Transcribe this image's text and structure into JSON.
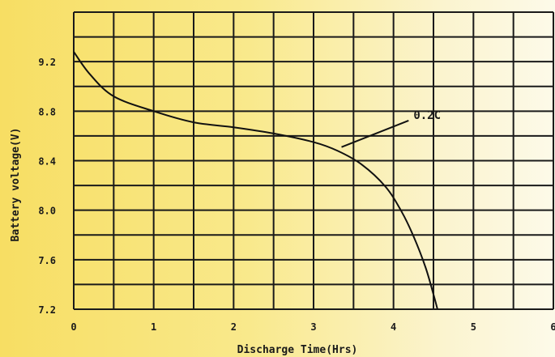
{
  "chart_data": {
    "type": "line",
    "title": "",
    "xlabel": "Discharge Time(Hrs)",
    "ylabel": "Battery voltage(V)",
    "xlim": [
      0,
      6
    ],
    "ylim": [
      7.2,
      9.6
    ],
    "grid": true,
    "x_ticks": [
      {
        "value": 0,
        "label": "0"
      },
      {
        "value": 1,
        "label": "1"
      },
      {
        "value": 2,
        "label": "2"
      },
      {
        "value": 3,
        "label": "3"
      },
      {
        "value": 4,
        "label": "4"
      },
      {
        "value": 5,
        "label": "5"
      },
      {
        "value": 6,
        "label": "6"
      }
    ],
    "y_ticks": [
      {
        "value": 7.2,
        "label": "7.2"
      },
      {
        "value": 7.6,
        "label": "7.6"
      },
      {
        "value": 8.0,
        "label": "8.0"
      },
      {
        "value": 8.4,
        "label": "8.4"
      },
      {
        "value": 8.8,
        "label": "8.8"
      },
      {
        "value": 9.2,
        "label": "9.2"
      }
    ],
    "x_gridlines": [
      0,
      0.5,
      1,
      1.5,
      2,
      2.5,
      3,
      3.5,
      4,
      4.5,
      5,
      5.5,
      6
    ],
    "y_gridlines": [
      7.2,
      7.4,
      7.6,
      7.8,
      8.0,
      8.2,
      8.4,
      8.6,
      8.8,
      9.0,
      9.2,
      9.4,
      9.6
    ],
    "series": [
      {
        "name": "0.2C",
        "x": [
          0,
          0.2,
          0.5,
          1.0,
          1.5,
          2.0,
          2.5,
          3.0,
          3.3,
          3.6,
          3.9,
          4.1,
          4.25,
          4.4,
          4.5,
          4.55
        ],
        "y": [
          9.28,
          9.1,
          8.92,
          8.8,
          8.71,
          8.67,
          8.62,
          8.55,
          8.48,
          8.37,
          8.19,
          7.99,
          7.79,
          7.54,
          7.32,
          7.2
        ]
      }
    ],
    "annotation": {
      "text": "0.2C",
      "x": 4.25,
      "y": 8.75,
      "arrow_to": {
        "x": 3.35,
        "y": 8.51
      }
    }
  }
}
